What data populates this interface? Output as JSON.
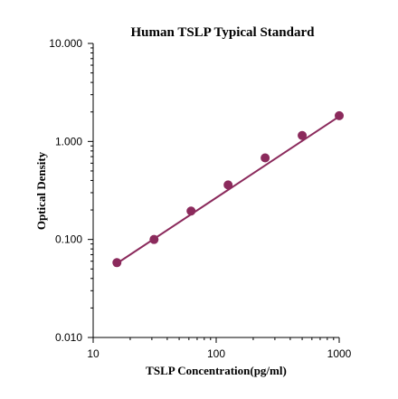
{
  "chart_data": {
    "type": "scatter",
    "title": "Human TSLP Typical Standard",
    "xlabel": "TSLP Concentration(pg/ml)",
    "ylabel": "Optical Density",
    "x_scale": "log",
    "y_scale": "log",
    "xlim": [
      10,
      1000
    ],
    "ylim": [
      0.01,
      10
    ],
    "x_ticks": [
      "10",
      "100",
      "1000"
    ],
    "y_ticks": [
      "10.000",
      "1.000",
      "0.100",
      "0.010"
    ],
    "grid": false,
    "series": [
      {
        "x": [
          15.6,
          31.25,
          62.5,
          125,
          250,
          500,
          1000
        ],
        "y": [
          0.058,
          0.1,
          0.195,
          0.36,
          0.68,
          1.15,
          1.83
        ]
      }
    ],
    "fit_line": {
      "x": [
        15.6,
        1000
      ],
      "y": [
        0.057,
        1.8
      ]
    },
    "color": "#8b2a5c"
  }
}
